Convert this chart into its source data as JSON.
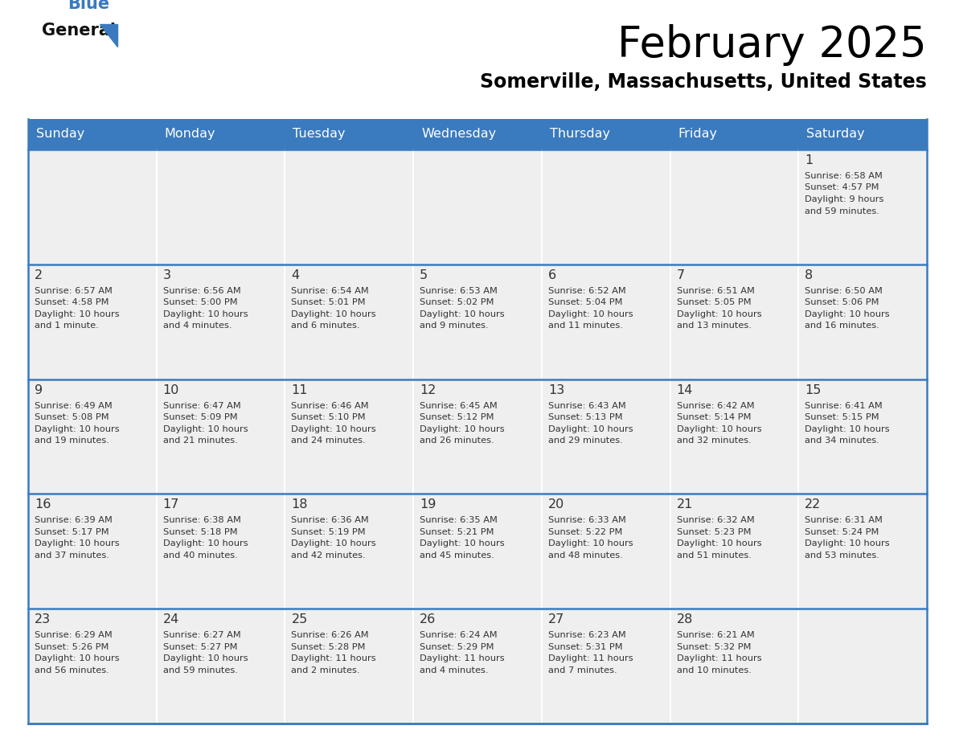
{
  "title": "February 2025",
  "subtitle": "Somerville, Massachusetts, United States",
  "header_color": "#3a7abf",
  "header_text_color": "#ffffff",
  "cell_bg_color": "#efefef",
  "cell_border_color": "#ffffff",
  "separator_color": "#3a7abf",
  "text_color": "#333333",
  "days_of_week": [
    "Sunday",
    "Monday",
    "Tuesday",
    "Wednesday",
    "Thursday",
    "Friday",
    "Saturday"
  ],
  "calendar_data": [
    [
      null,
      null,
      null,
      null,
      null,
      null,
      {
        "day": 1,
        "sunrise": "6:58 AM",
        "sunset": "4:57 PM",
        "daylight": "9 hours\nand 59 minutes."
      }
    ],
    [
      {
        "day": 2,
        "sunrise": "6:57 AM",
        "sunset": "4:58 PM",
        "daylight": "10 hours\nand 1 minute."
      },
      {
        "day": 3,
        "sunrise": "6:56 AM",
        "sunset": "5:00 PM",
        "daylight": "10 hours\nand 4 minutes."
      },
      {
        "day": 4,
        "sunrise": "6:54 AM",
        "sunset": "5:01 PM",
        "daylight": "10 hours\nand 6 minutes."
      },
      {
        "day": 5,
        "sunrise": "6:53 AM",
        "sunset": "5:02 PM",
        "daylight": "10 hours\nand 9 minutes."
      },
      {
        "day": 6,
        "sunrise": "6:52 AM",
        "sunset": "5:04 PM",
        "daylight": "10 hours\nand 11 minutes."
      },
      {
        "day": 7,
        "sunrise": "6:51 AM",
        "sunset": "5:05 PM",
        "daylight": "10 hours\nand 13 minutes."
      },
      {
        "day": 8,
        "sunrise": "6:50 AM",
        "sunset": "5:06 PM",
        "daylight": "10 hours\nand 16 minutes."
      }
    ],
    [
      {
        "day": 9,
        "sunrise": "6:49 AM",
        "sunset": "5:08 PM",
        "daylight": "10 hours\nand 19 minutes."
      },
      {
        "day": 10,
        "sunrise": "6:47 AM",
        "sunset": "5:09 PM",
        "daylight": "10 hours\nand 21 minutes."
      },
      {
        "day": 11,
        "sunrise": "6:46 AM",
        "sunset": "5:10 PM",
        "daylight": "10 hours\nand 24 minutes."
      },
      {
        "day": 12,
        "sunrise": "6:45 AM",
        "sunset": "5:12 PM",
        "daylight": "10 hours\nand 26 minutes."
      },
      {
        "day": 13,
        "sunrise": "6:43 AM",
        "sunset": "5:13 PM",
        "daylight": "10 hours\nand 29 minutes."
      },
      {
        "day": 14,
        "sunrise": "6:42 AM",
        "sunset": "5:14 PM",
        "daylight": "10 hours\nand 32 minutes."
      },
      {
        "day": 15,
        "sunrise": "6:41 AM",
        "sunset": "5:15 PM",
        "daylight": "10 hours\nand 34 minutes."
      }
    ],
    [
      {
        "day": 16,
        "sunrise": "6:39 AM",
        "sunset": "5:17 PM",
        "daylight": "10 hours\nand 37 minutes."
      },
      {
        "day": 17,
        "sunrise": "6:38 AM",
        "sunset": "5:18 PM",
        "daylight": "10 hours\nand 40 minutes."
      },
      {
        "day": 18,
        "sunrise": "6:36 AM",
        "sunset": "5:19 PM",
        "daylight": "10 hours\nand 42 minutes."
      },
      {
        "day": 19,
        "sunrise": "6:35 AM",
        "sunset": "5:21 PM",
        "daylight": "10 hours\nand 45 minutes."
      },
      {
        "day": 20,
        "sunrise": "6:33 AM",
        "sunset": "5:22 PM",
        "daylight": "10 hours\nand 48 minutes."
      },
      {
        "day": 21,
        "sunrise": "6:32 AM",
        "sunset": "5:23 PM",
        "daylight": "10 hours\nand 51 minutes."
      },
      {
        "day": 22,
        "sunrise": "6:31 AM",
        "sunset": "5:24 PM",
        "daylight": "10 hours\nand 53 minutes."
      }
    ],
    [
      {
        "day": 23,
        "sunrise": "6:29 AM",
        "sunset": "5:26 PM",
        "daylight": "10 hours\nand 56 minutes."
      },
      {
        "day": 24,
        "sunrise": "6:27 AM",
        "sunset": "5:27 PM",
        "daylight": "10 hours\nand 59 minutes."
      },
      {
        "day": 25,
        "sunrise": "6:26 AM",
        "sunset": "5:28 PM",
        "daylight": "11 hours\nand 2 minutes."
      },
      {
        "day": 26,
        "sunrise": "6:24 AM",
        "sunset": "5:29 PM",
        "daylight": "11 hours\nand 4 minutes."
      },
      {
        "day": 27,
        "sunrise": "6:23 AM",
        "sunset": "5:31 PM",
        "daylight": "11 hours\nand 7 minutes."
      },
      {
        "day": 28,
        "sunrise": "6:21 AM",
        "sunset": "5:32 PM",
        "daylight": "11 hours\nand 10 minutes."
      },
      null
    ]
  ]
}
